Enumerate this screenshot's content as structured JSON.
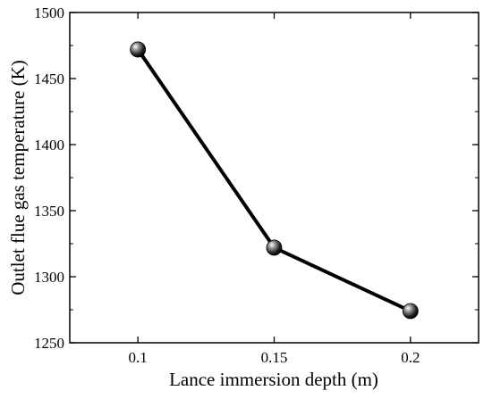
{
  "chart_data": {
    "type": "line",
    "title": "",
    "xlabel": "Lance immersion depth (m)",
    "ylabel": "Outlet flue gas temperature (K)",
    "x": [
      0.1,
      0.15,
      0.2
    ],
    "x_tick_labels": [
      "0.1",
      "0.15",
      "0.2"
    ],
    "y_ticks": [
      1250,
      1300,
      1350,
      1400,
      1450,
      1500
    ],
    "y_tick_labels": [
      "1250",
      "1300",
      "1350",
      "1400",
      "1450",
      "1500"
    ],
    "xlim": [
      0.075,
      0.225
    ],
    "ylim": [
      1250,
      1500
    ],
    "grid": false,
    "legend": "none",
    "series": [
      {
        "values": [
          1472,
          1322,
          1274
        ],
        "color": "#000000",
        "marker": "sphere"
      }
    ]
  }
}
